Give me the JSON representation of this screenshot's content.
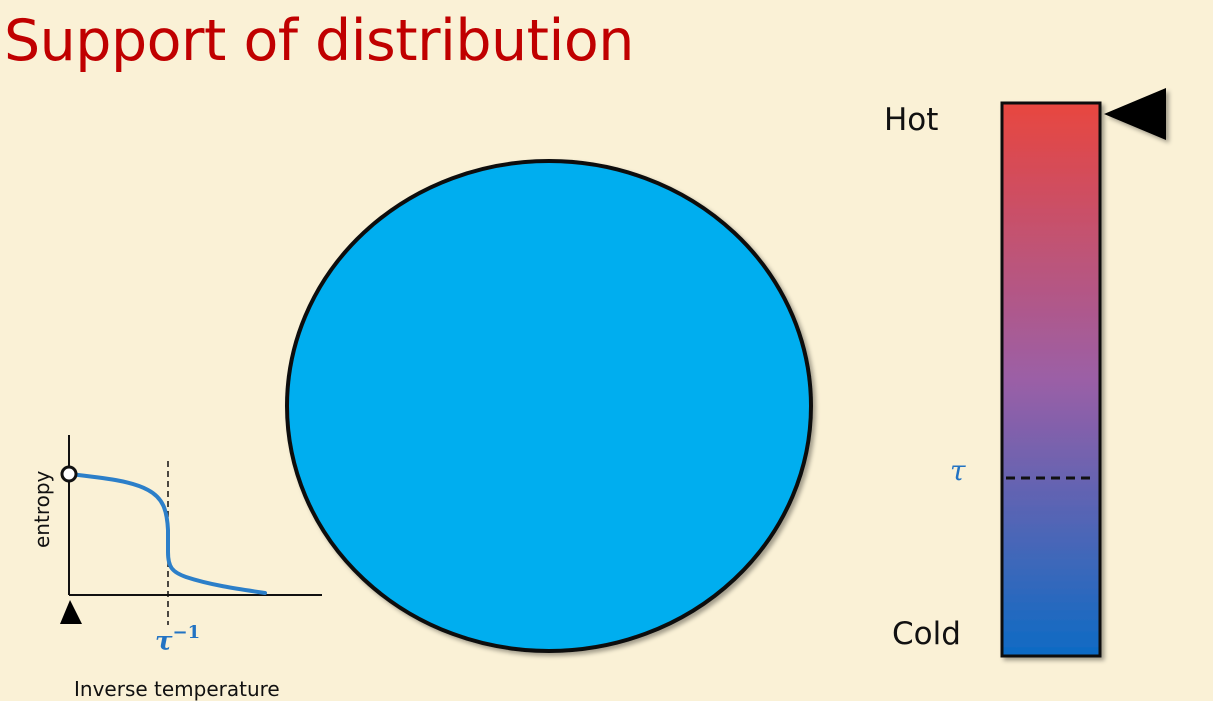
{
  "slide": {
    "title": "Support of distribution"
  },
  "thermometer": {
    "hot_label": "Hot",
    "cold_label": "Cold",
    "threshold_label": "τ",
    "colors": {
      "top": "#E8463F",
      "middle": "#9B5FA6",
      "bottom": "#0D6BC4"
    }
  },
  "plot": {
    "ylabel": "entropy",
    "xlabel": "Inverse temperature",
    "marker_symbol": "τ",
    "marker_exponent": "−1",
    "curve_color": "#2C7FC9"
  },
  "circle": {
    "fill": "#00AEEF"
  }
}
